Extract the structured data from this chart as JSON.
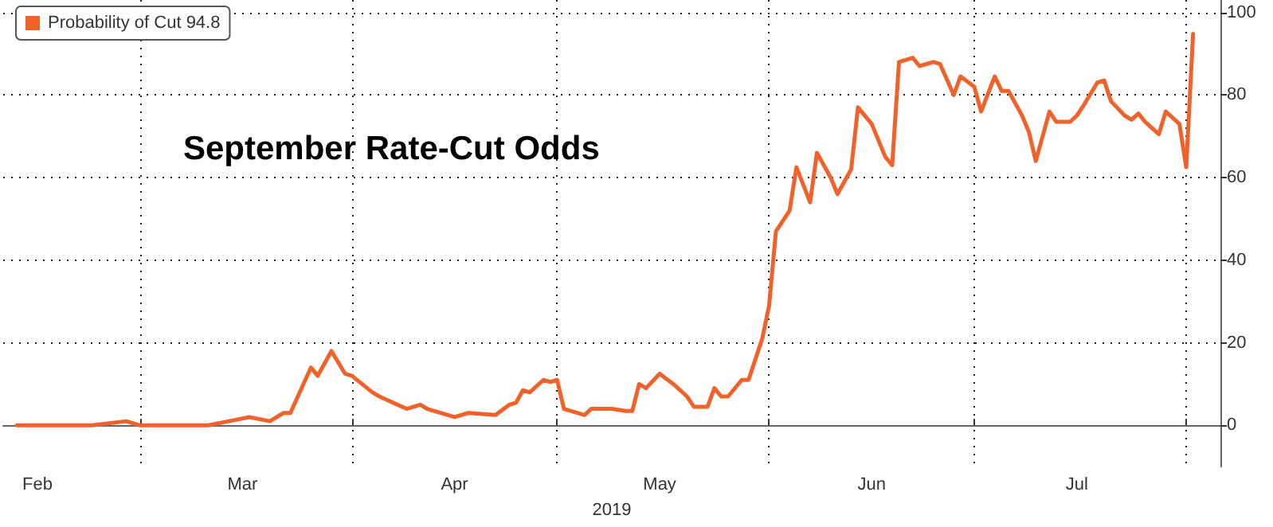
{
  "chart_data": {
    "type": "line",
    "title": "September Rate-Cut Odds",
    "xlabel": "2019",
    "x": [
      "2019-02-11",
      "2019-02-22",
      "2019-02-27",
      "2019-03-01",
      "2019-03-11",
      "2019-03-14",
      "2019-03-17",
      "2019-03-20",
      "2019-03-22",
      "2019-03-23",
      "2019-03-26",
      "2019-03-27",
      "2019-03-29",
      "2019-03-31",
      "2019-04-01",
      "2019-04-04",
      "2019-04-05",
      "2019-04-09",
      "2019-04-11",
      "2019-04-12",
      "2019-04-16",
      "2019-04-18",
      "2019-04-22",
      "2019-04-24",
      "2019-04-25",
      "2019-04-26",
      "2019-04-27",
      "2019-04-29",
      "2019-04-30",
      "2019-05-01",
      "2019-05-02",
      "2019-05-05",
      "2019-05-06",
      "2019-05-09",
      "2019-05-11",
      "2019-05-12",
      "2019-05-13",
      "2019-05-14",
      "2019-05-16",
      "2019-05-18",
      "2019-05-20",
      "2019-05-21",
      "2019-05-23",
      "2019-05-24",
      "2019-05-25",
      "2019-05-26",
      "2019-05-28",
      "2019-05-29",
      "2019-05-31",
      "2019-06-01",
      "2019-06-02",
      "2019-06-04",
      "2019-06-05",
      "2019-06-07",
      "2019-06-08",
      "2019-06-10",
      "2019-06-11",
      "2019-06-13",
      "2019-06-14",
      "2019-06-16",
      "2019-06-18",
      "2019-06-19",
      "2019-06-20",
      "2019-06-22",
      "2019-06-23",
      "2019-06-25",
      "2019-06-26",
      "2019-06-28",
      "2019-06-29",
      "2019-07-01",
      "2019-07-02",
      "2019-07-04",
      "2019-07-05",
      "2019-07-06",
      "2019-07-08",
      "2019-07-09",
      "2019-07-10",
      "2019-07-12",
      "2019-07-13",
      "2019-07-15",
      "2019-07-16",
      "2019-07-17",
      "2019-07-19",
      "2019-07-20",
      "2019-07-21",
      "2019-07-23",
      "2019-07-24",
      "2019-07-25",
      "2019-07-26",
      "2019-07-28",
      "2019-07-29",
      "2019-07-31",
      "2019-08-01",
      "2019-08-02"
    ],
    "series": [
      {
        "name": "Probability of Cut 94.8",
        "color": "#f0622a",
        "values": [
          0,
          0,
          1,
          0,
          0,
          1,
          2,
          1,
          3,
          3,
          14,
          12,
          18,
          12.5,
          12,
          8,
          7,
          4,
          5,
          4,
          2,
          3,
          2.5,
          5,
          5.5,
          8.5,
          8,
          11,
          10.5,
          11,
          4,
          2.5,
          4,
          4,
          3.5,
          3.5,
          10,
          9,
          12.5,
          10,
          7,
          4.5,
          4.5,
          9,
          7,
          7,
          11,
          11,
          21,
          29,
          47,
          52,
          62.5,
          54,
          66,
          60,
          56,
          62,
          77,
          73,
          65,
          63,
          88,
          89,
          87,
          88,
          87.5,
          80,
          84.5,
          82,
          76,
          84.5,
          81,
          81,
          75,
          71,
          64,
          76,
          73.5,
          73.5,
          75,
          77.5,
          83,
          83.5,
          78.5,
          75,
          74,
          75.5,
          73.5,
          70.5,
          76,
          73,
          62.5,
          94.8
        ]
      }
    ],
    "xlim": [
      "2019-02-09",
      "2019-08-06"
    ],
    "xticks": [
      {
        "value": "2019-03-01",
        "label": null
      },
      {
        "value": "2019-04-01",
        "label": null
      },
      {
        "value": "2019-05-01",
        "label": null
      },
      {
        "value": "2019-06-01",
        "label": null
      },
      {
        "value": "2019-07-01",
        "label": null
      },
      {
        "value": "2019-08-01",
        "label": null
      },
      {
        "value": "2019-02-14",
        "label": "Feb"
      },
      {
        "value": "2019-03-16",
        "label": "Mar"
      },
      {
        "value": "2019-04-16",
        "label": "Apr"
      },
      {
        "value": "2019-05-16",
        "label": "May"
      },
      {
        "value": "2019-06-16",
        "label": "Jun"
      },
      {
        "value": "2019-07-16",
        "label": "Jul"
      }
    ],
    "ylim": [
      -10,
      103
    ],
    "yticks": [
      0,
      20,
      40,
      60,
      80,
      100
    ],
    "grid": true,
    "legend": "top left",
    "marker": "none",
    "line_style": "solid"
  }
}
